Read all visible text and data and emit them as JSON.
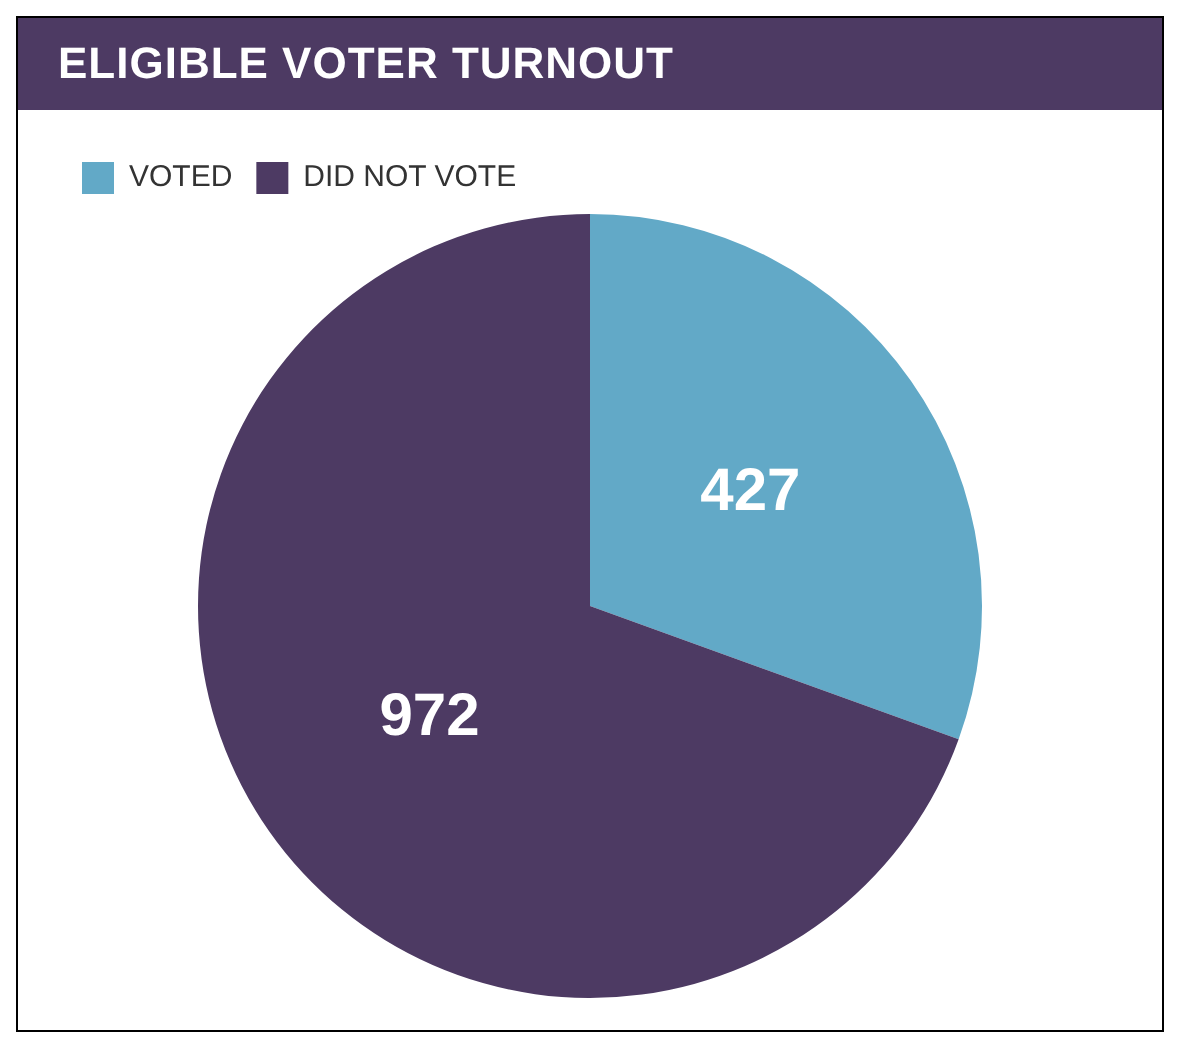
{
  "chart_data": {
    "type": "pie",
    "title": "ELIGIBLE VOTER TURNOUT",
    "categories": [
      "VOTED",
      "DID NOT VOTE"
    ],
    "values": [
      427,
      972
    ],
    "colors": [
      "#62a9c7",
      "#4d3a63"
    ],
    "legend": "top left",
    "data_labels": true
  }
}
